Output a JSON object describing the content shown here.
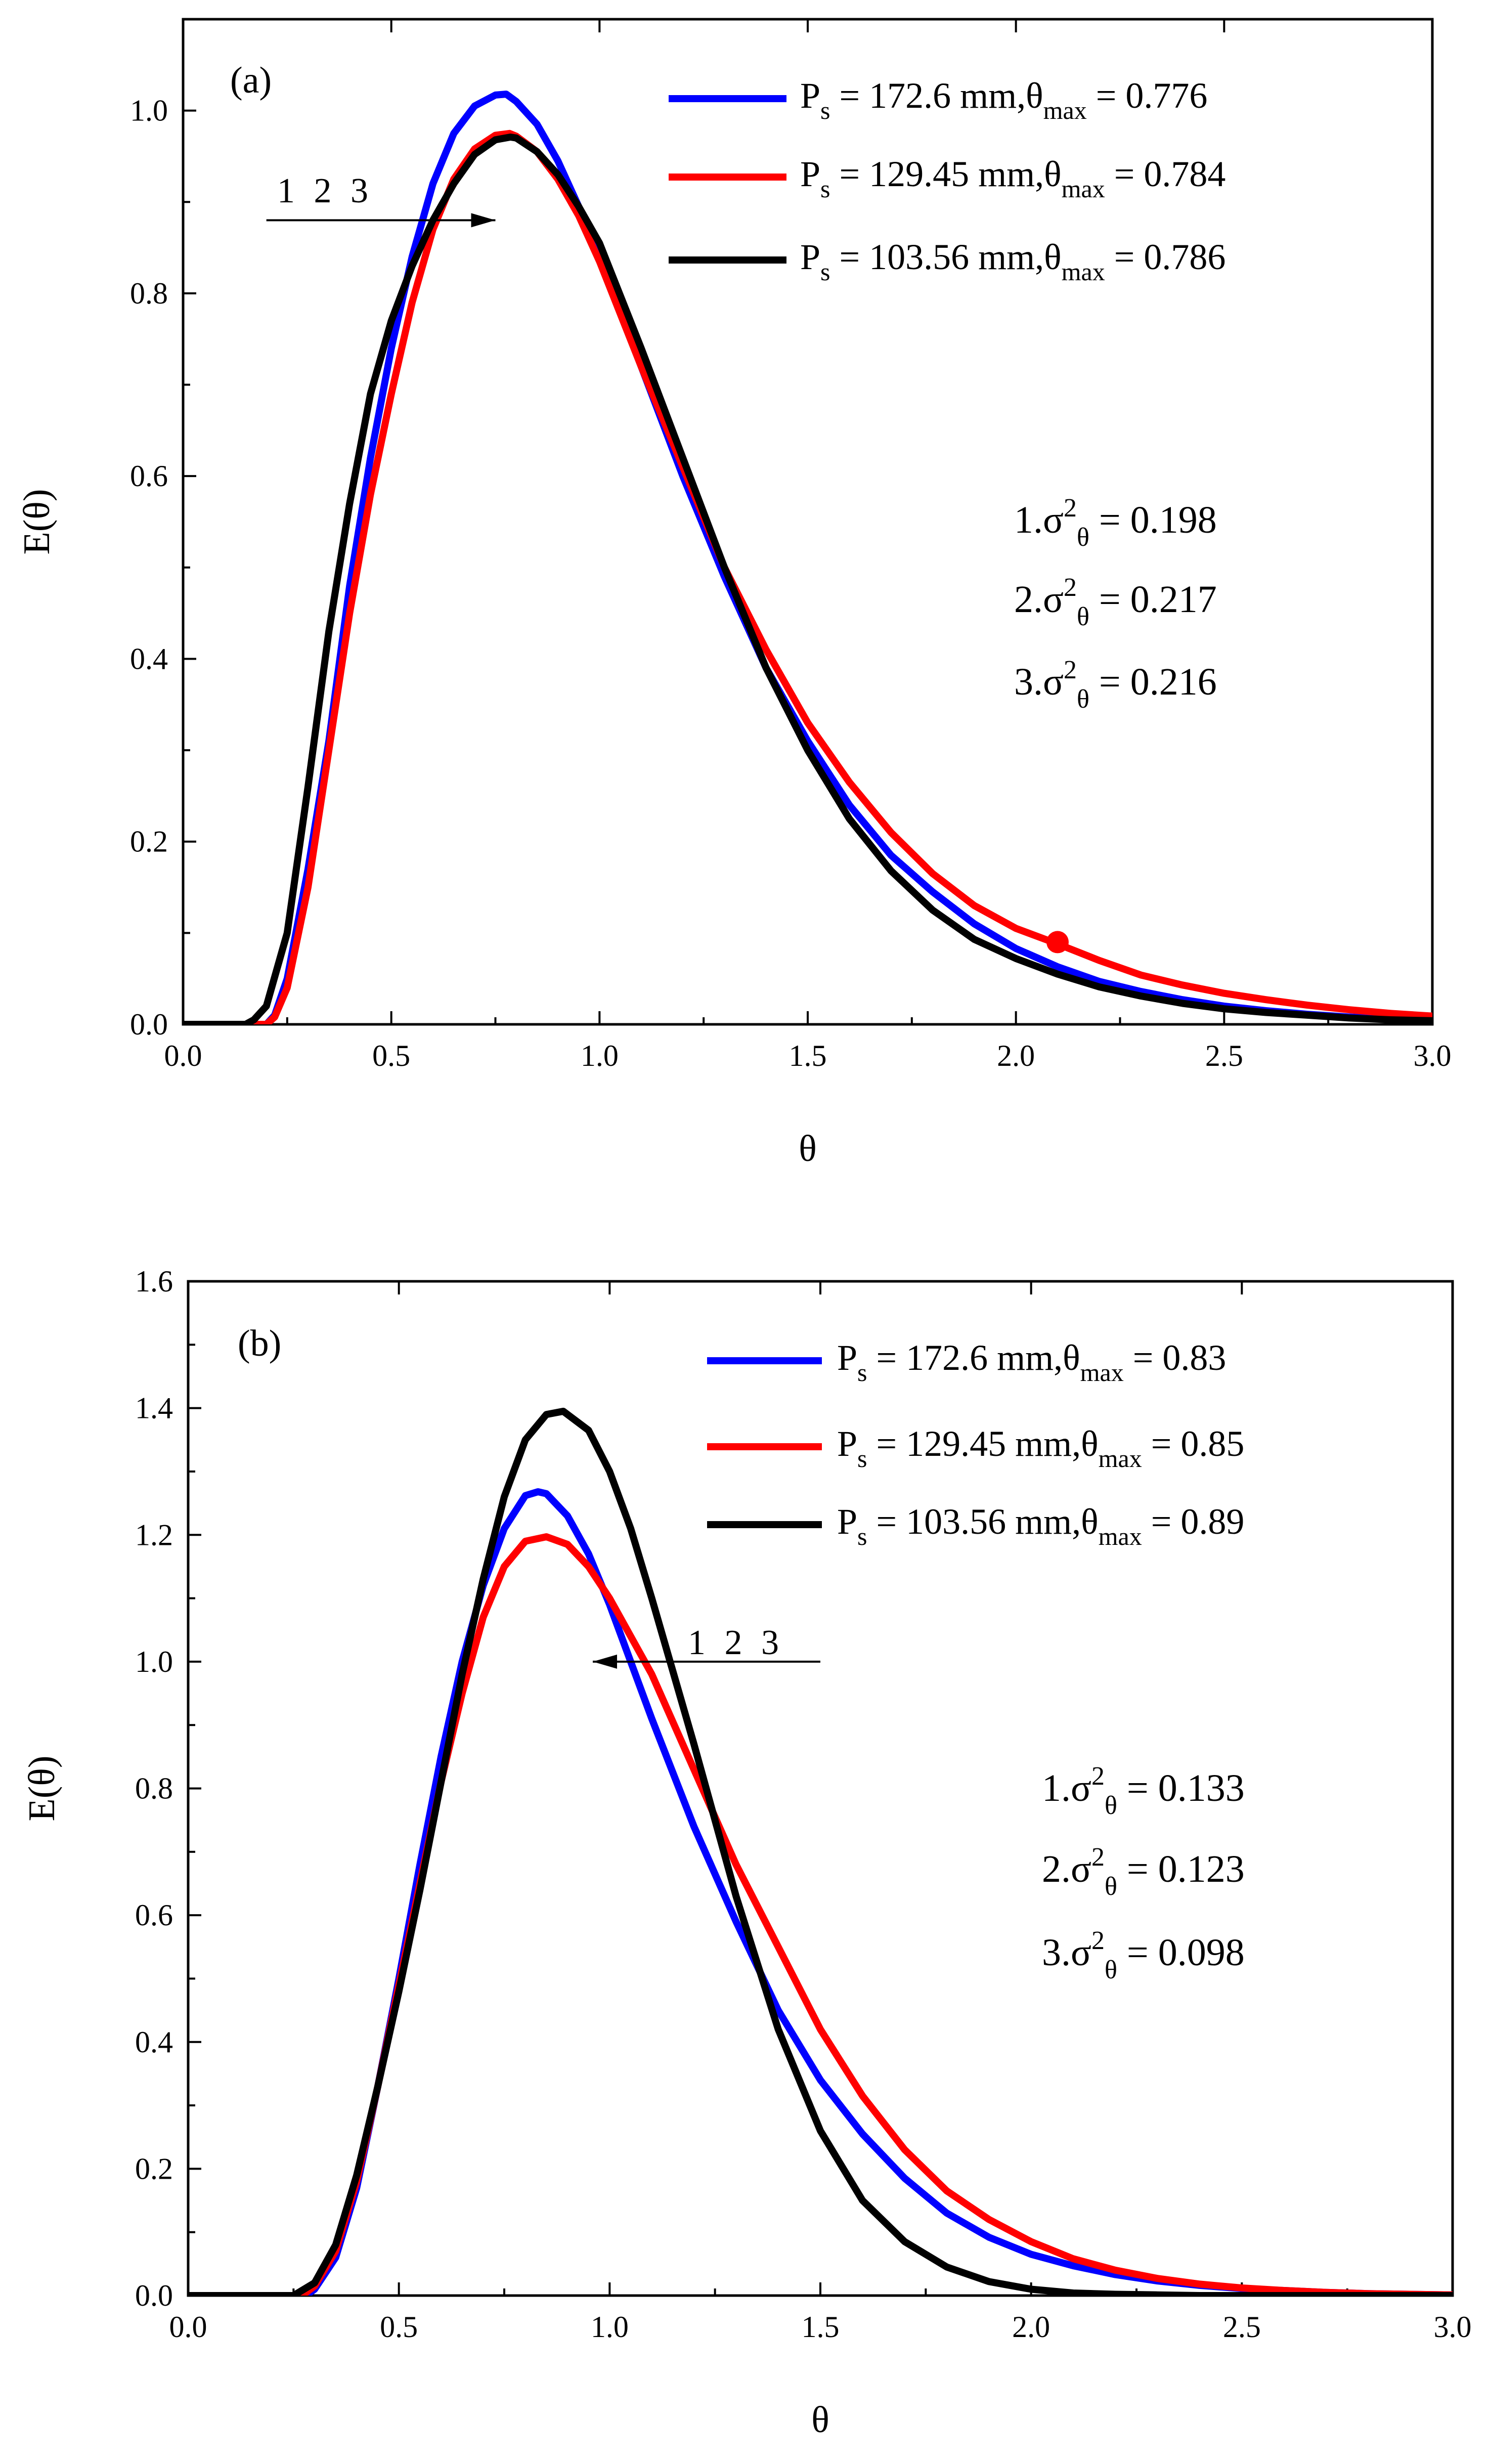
{
  "chart_data": [
    {
      "type": "line",
      "panel_label": "(a)",
      "xlabel": "θ",
      "ylabel": "E(θ)",
      "xlim": [
        0,
        3
      ],
      "ylim": [
        0,
        1.1
      ],
      "xticks": [
        "0.0",
        "0.5",
        "1.0",
        "1.5",
        "2.0",
        "2.5",
        "3.0"
      ],
      "yticks": [
        "0.0",
        "0.2",
        "0.4",
        "0.6",
        "0.8",
        "1.0"
      ],
      "xtick_values": [
        0,
        0.5,
        1.0,
        1.5,
        2.0,
        2.5,
        3.0
      ],
      "ytick_values": [
        0,
        0.2,
        0.4,
        0.6,
        0.8,
        1.0
      ],
      "arrow_annotation": {
        "text": "1 2 3",
        "from_x": 0.2,
        "to_x": 0.75,
        "y": 0.88,
        "direction": "right"
      },
      "marker": {
        "x": 2.1,
        "y": 0.09,
        "color": "#ff0000"
      },
      "variances": [
        {
          "prefix": "1.",
          "sup": "2",
          "sub": "θ",
          "value": " = 0.198"
        },
        {
          "prefix": "2.",
          "sup": "2",
          "sub": "θ",
          "value": " = 0.217"
        },
        {
          "prefix": "3.",
          "sup": "2",
          "sub": "θ",
          "value": " = 0.216"
        }
      ],
      "series": [
        {
          "name": "Ps = 172.6 mm, θmax = 0.776",
          "legend": {
            "p": "P",
            "p_sub": "s",
            "mid": " = 172.6 mm,θ",
            "t_sub": "max",
            "val": " = 0.776"
          },
          "color": "#0000ff",
          "x": [
            0,
            0.2,
            0.22,
            0.25,
            0.3,
            0.35,
            0.4,
            0.45,
            0.5,
            0.55,
            0.6,
            0.65,
            0.7,
            0.75,
            0.776,
            0.8,
            0.85,
            0.9,
            0.95,
            1.0,
            1.1,
            1.2,
            1.3,
            1.4,
            1.5,
            1.6,
            1.7,
            1.8,
            1.9,
            2.0,
            2.1,
            2.2,
            2.3,
            2.4,
            2.5,
            2.6,
            2.7,
            2.8,
            2.9,
            3.0
          ],
          "y": [
            0,
            0,
            0.01,
            0.05,
            0.17,
            0.31,
            0.48,
            0.62,
            0.74,
            0.84,
            0.92,
            0.975,
            1.005,
            1.017,
            1.018,
            1.01,
            0.985,
            0.945,
            0.895,
            0.84,
            0.72,
            0.6,
            0.49,
            0.39,
            0.31,
            0.24,
            0.185,
            0.145,
            0.11,
            0.083,
            0.063,
            0.047,
            0.036,
            0.027,
            0.02,
            0.015,
            0.011,
            0.008,
            0.006,
            0.004
          ]
        },
        {
          "name": "Ps = 129.45 mm, θmax = 0.784",
          "legend": {
            "p": "P",
            "p_sub": "s",
            "mid": " = 129.45 mm,θ",
            "t_sub": "max",
            "val": " = 0.784"
          },
          "color": "#ff0000",
          "x": [
            0,
            0.2,
            0.22,
            0.25,
            0.3,
            0.35,
            0.4,
            0.45,
            0.5,
            0.55,
            0.6,
            0.65,
            0.7,
            0.75,
            0.784,
            0.8,
            0.85,
            0.9,
            0.95,
            1.0,
            1.1,
            1.2,
            1.3,
            1.4,
            1.5,
            1.6,
            1.7,
            1.8,
            1.9,
            2.0,
            2.1,
            2.2,
            2.3,
            2.4,
            2.5,
            2.6,
            2.7,
            2.8,
            2.9,
            3.0
          ],
          "y": [
            0,
            0,
            0.008,
            0.04,
            0.15,
            0.3,
            0.45,
            0.58,
            0.69,
            0.79,
            0.87,
            0.925,
            0.958,
            0.973,
            0.975,
            0.972,
            0.955,
            0.925,
            0.885,
            0.835,
            0.72,
            0.61,
            0.5,
            0.41,
            0.33,
            0.265,
            0.21,
            0.165,
            0.13,
            0.105,
            0.088,
            0.07,
            0.054,
            0.043,
            0.034,
            0.027,
            0.021,
            0.016,
            0.012,
            0.009
          ]
        },
        {
          "name": "Ps = 103.56 mm, θmax = 0.786",
          "legend": {
            "p": "P",
            "p_sub": "s",
            "mid": " = 103.56 mm,θ",
            "t_sub": "max",
            "val": " = 0.786"
          },
          "color": "#000000",
          "x": [
            0,
            0.15,
            0.17,
            0.2,
            0.25,
            0.3,
            0.35,
            0.4,
            0.45,
            0.5,
            0.55,
            0.6,
            0.65,
            0.7,
            0.75,
            0.786,
            0.8,
            0.85,
            0.9,
            0.95,
            1.0,
            1.1,
            1.2,
            1.3,
            1.4,
            1.5,
            1.6,
            1.7,
            1.8,
            1.9,
            2.0,
            2.1,
            2.2,
            2.3,
            2.4,
            2.5,
            2.6,
            2.7,
            2.8,
            2.9,
            3.0
          ],
          "y": [
            0,
            0,
            0.005,
            0.02,
            0.1,
            0.26,
            0.43,
            0.57,
            0.69,
            0.77,
            0.83,
            0.88,
            0.92,
            0.952,
            0.968,
            0.971,
            0.97,
            0.955,
            0.93,
            0.895,
            0.855,
            0.74,
            0.62,
            0.5,
            0.39,
            0.3,
            0.225,
            0.168,
            0.125,
            0.093,
            0.072,
            0.055,
            0.041,
            0.031,
            0.023,
            0.017,
            0.013,
            0.01,
            0.007,
            0.005,
            0.004
          ]
        }
      ]
    },
    {
      "type": "line",
      "panel_label": "(b)",
      "xlabel": "θ",
      "ylabel": "E(θ)",
      "xlim": [
        0,
        3
      ],
      "ylim": [
        0,
        1.6
      ],
      "xticks": [
        "0.0",
        "0.5",
        "1.0",
        "1.5",
        "2.0",
        "2.5",
        "3.0"
      ],
      "yticks": [
        "0.0",
        "0.2",
        "0.4",
        "0.6",
        "0.8",
        "1.0",
        "1.2",
        "1.4",
        "1.6"
      ],
      "xtick_values": [
        0,
        0.5,
        1.0,
        1.5,
        2.0,
        2.5,
        3.0
      ],
      "ytick_values": [
        0,
        0.2,
        0.4,
        0.6,
        0.8,
        1.0,
        1.2,
        1.4,
        1.6
      ],
      "arrow_annotation": {
        "text": "1 2 3",
        "from_x": 1.5,
        "to_x": 0.96,
        "y": 1.0,
        "direction": "left"
      },
      "variances": [
        {
          "prefix": "1.",
          "sup": "2",
          "sub": "θ",
          "value": " = 0.133"
        },
        {
          "prefix": "2.",
          "sup": "2",
          "sub": "θ",
          "value": " = 0.123"
        },
        {
          "prefix": "3.",
          "sup": "2",
          "sub": "θ",
          "value": " = 0.098"
        }
      ],
      "series": [
        {
          "name": "Ps = 172.6 mm, θmax = 0.83",
          "legend": {
            "p": "P",
            "p_sub": "s",
            "mid": " = 172.6 mm,θ",
            "t_sub": "max",
            "val": " = 0.83"
          },
          "color": "#0000ff",
          "x": [
            0,
            0.28,
            0.3,
            0.35,
            0.4,
            0.45,
            0.5,
            0.55,
            0.6,
            0.65,
            0.7,
            0.75,
            0.8,
            0.83,
            0.85,
            0.9,
            0.95,
            1.0,
            1.1,
            1.2,
            1.3,
            1.4,
            1.5,
            1.6,
            1.7,
            1.8,
            1.9,
            2.0,
            2.1,
            2.2,
            2.3,
            2.4,
            2.5,
            2.6,
            2.7,
            2.8,
            2.9,
            3.0
          ],
          "y": [
            0,
            0,
            0.01,
            0.06,
            0.17,
            0.33,
            0.5,
            0.68,
            0.85,
            1.0,
            1.12,
            1.21,
            1.262,
            1.268,
            1.265,
            1.23,
            1.17,
            1.09,
            0.91,
            0.74,
            0.59,
            0.45,
            0.34,
            0.255,
            0.185,
            0.13,
            0.092,
            0.065,
            0.047,
            0.033,
            0.023,
            0.016,
            0.011,
            0.008,
            0.005,
            0.003,
            0.002,
            0.001
          ]
        },
        {
          "name": "Ps = 129.45 mm, θmax = 0.85",
          "legend": {
            "p": "P",
            "p_sub": "s",
            "mid": " = 129.45 mm,θ",
            "t_sub": "max",
            "val": " = 0.85"
          },
          "color": "#ff0000",
          "x": [
            0,
            0.27,
            0.3,
            0.35,
            0.4,
            0.45,
            0.5,
            0.55,
            0.6,
            0.65,
            0.7,
            0.75,
            0.8,
            0.85,
            0.9,
            0.95,
            1.0,
            1.1,
            1.2,
            1.3,
            1.4,
            1.5,
            1.6,
            1.7,
            1.8,
            1.9,
            2.0,
            2.1,
            2.2,
            2.3,
            2.4,
            2.5,
            2.6,
            2.7,
            2.8,
            2.9,
            3.0
          ],
          "y": [
            0,
            0,
            0.015,
            0.07,
            0.18,
            0.33,
            0.49,
            0.65,
            0.81,
            0.95,
            1.07,
            1.15,
            1.19,
            1.197,
            1.185,
            1.15,
            1.1,
            0.98,
            0.83,
            0.68,
            0.55,
            0.42,
            0.315,
            0.23,
            0.165,
            0.12,
            0.085,
            0.058,
            0.04,
            0.027,
            0.018,
            0.012,
            0.008,
            0.005,
            0.003,
            0.002,
            0.001
          ]
        },
        {
          "name": "Ps = 103.56 mm, θmax = 0.89",
          "legend": {
            "p": "P",
            "p_sub": "s",
            "mid": " = 103.56 mm,θ",
            "t_sub": "max",
            "val": " = 0.89"
          },
          "color": "#000000",
          "x": [
            0,
            0.25,
            0.3,
            0.35,
            0.4,
            0.45,
            0.5,
            0.55,
            0.6,
            0.65,
            0.7,
            0.75,
            0.8,
            0.85,
            0.89,
            0.95,
            1.0,
            1.05,
            1.1,
            1.2,
            1.3,
            1.4,
            1.5,
            1.6,
            1.7,
            1.8,
            1.9,
            2.0,
            2.1,
            2.2,
            2.3,
            2.4,
            2.5,
            2.6,
            2.7,
            2.8,
            2.9,
            3.0
          ],
          "y": [
            0,
            0,
            0.02,
            0.08,
            0.19,
            0.33,
            0.48,
            0.64,
            0.81,
            0.98,
            1.13,
            1.26,
            1.35,
            1.39,
            1.395,
            1.365,
            1.3,
            1.21,
            1.1,
            0.87,
            0.63,
            0.42,
            0.26,
            0.15,
            0.085,
            0.045,
            0.022,
            0.01,
            0.004,
            0.002,
            0.001,
            0,
            0,
            0,
            0,
            0,
            0,
            0
          ]
        }
      ]
    }
  ]
}
